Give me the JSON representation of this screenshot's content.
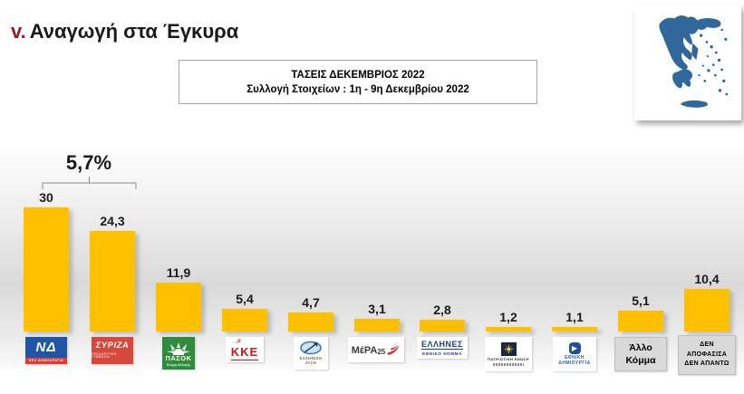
{
  "page": {
    "title_prefix": "v.",
    "title": "Αναγωγή στα Έγκυρα"
  },
  "info_box": {
    "line1": "ΤΑΣΕΙΣ ΔΕΚΕΜΒΡΙΟΣ 2022",
    "line2": "Συλλογή Στοιχείων : 1η  - 9η Δεκεμβρίου 2022"
  },
  "map": {
    "name": "greece-map",
    "fill_color": "#31689b"
  },
  "chart_data": {
    "type": "bar",
    "title": "Αναγωγή στα Έγκυρα - ΤΑΣΕΙΣ ΔΕΚΕΜΒΡΙΟΣ 2022",
    "categories": [
      "ΝΕΑ ΔΗΜΟΚΡΑΤΙΑ",
      "ΣΥΡΙΖΑ",
      "ΠΑΣΟΚ",
      "ΚΚΕ",
      "ΕΛΛΗΝΙΚΗ ΛΥΣΗ",
      "ΜέΡΑ25",
      "ΕΛΛΗΝΕΣ ΕΘΝΙΚΟ ΚΟΜΜΑ",
      "ΠΑΤΡΙΩΤΙΚΗ ΕΝΩΣΗ",
      "ΕΘΝΙΚΗ ΔΗΜΙΟΥΡΓΙΑ",
      "Άλλο Κόμμα",
      "ΔΕΝ ΑΠΟΦΑΣΙΣΑ ΔΕΝ ΑΠΑΝΤΩ"
    ],
    "values": [
      30,
      24.3,
      11.9,
      5.4,
      4.7,
      3.1,
      2.8,
      1.2,
      1.1,
      5.1,
      10.4
    ],
    "value_labels": [
      "30",
      "24,3",
      "11,9",
      "5,4",
      "4,7",
      "3,1",
      "2,8",
      "1,2",
      "1,1",
      "5,1",
      "10,4"
    ],
    "bar_color": "#FFC000",
    "xlabel": "",
    "ylabel": "",
    "ylim": [
      0,
      33
    ],
    "grid": false,
    "legend": false,
    "annotation": {
      "label": "5,7%",
      "between": [
        "ΝΕΑ ΔΗΜΟΚΡΑΤΙΑ",
        "ΣΥΡΙΖΑ"
      ]
    }
  },
  "annotation": {
    "label": "5,7%"
  },
  "parties": [
    {
      "name": "ΝΕΑ ΔΗΜΟΚΡΑΤΙΑ",
      "mark": "ΝΔ",
      "strip": "ΝΕΑ ΔΗΜΟΚΡΑΤΙΑ"
    },
    {
      "name": "ΣΥΡΙΖΑ",
      "main": "ΣΥΡΙΖΑ",
      "sub": "ΠΡΟΟΔΕΥΤΙΚΗ ΣΥΜΜΑΧΙΑ"
    },
    {
      "name": "ΠΑΣΟΚ",
      "main": "ΠΑΣΟΚ",
      "sub": "Κίνημα Αλλαγής"
    },
    {
      "name": "ΚΚΕ",
      "main": "ΚΚΕ"
    },
    {
      "name": "ΕΛΛΗΝΙΚΗ ΛΥΣΗ",
      "main": "ΕΛΛΗΝΙΚΗ ΛΥΣΗ"
    },
    {
      "name": "ΜέΡΑ25",
      "main": "ΜέΡΑ",
      "suffix": "25"
    },
    {
      "name": "ΕΛΛΗΝΕΣ",
      "main": "ΕΛΛΗΝΕΣ",
      "sub": "ΕΘΝΙΚΟ ΚΟΜΜΑ"
    },
    {
      "name": "ΠΑΤΡΙΩΤΙΚΗ ΕΝΩΣΗ",
      "main": "ΠΑΤΡΙΩΤΙΚΗ ΕΝΩΣΗ"
    },
    {
      "name": "ΕΘΝΙΚΗ ΔΗΜΙΟΥΡΓΙΑ",
      "line1": "ΕΘΝΙΚΗ",
      "line2": "ΔΗΜΙΟΥΡΓΙΑ"
    },
    {
      "name": "Άλλο Κόμμα",
      "line1": "Άλλο",
      "line2": "Κόμμα"
    },
    {
      "name": "ΔΕΝ ΑΠΟΦΑΣΙΣΑ ΔΕΝ ΑΠΑΝΤΩ",
      "line1": "ΔΕΝ",
      "line2": "ΑΠΟΦΑΣΙΣΑ",
      "line3": "ΔΕΝ ΑΠΑΝΤΩ"
    }
  ]
}
